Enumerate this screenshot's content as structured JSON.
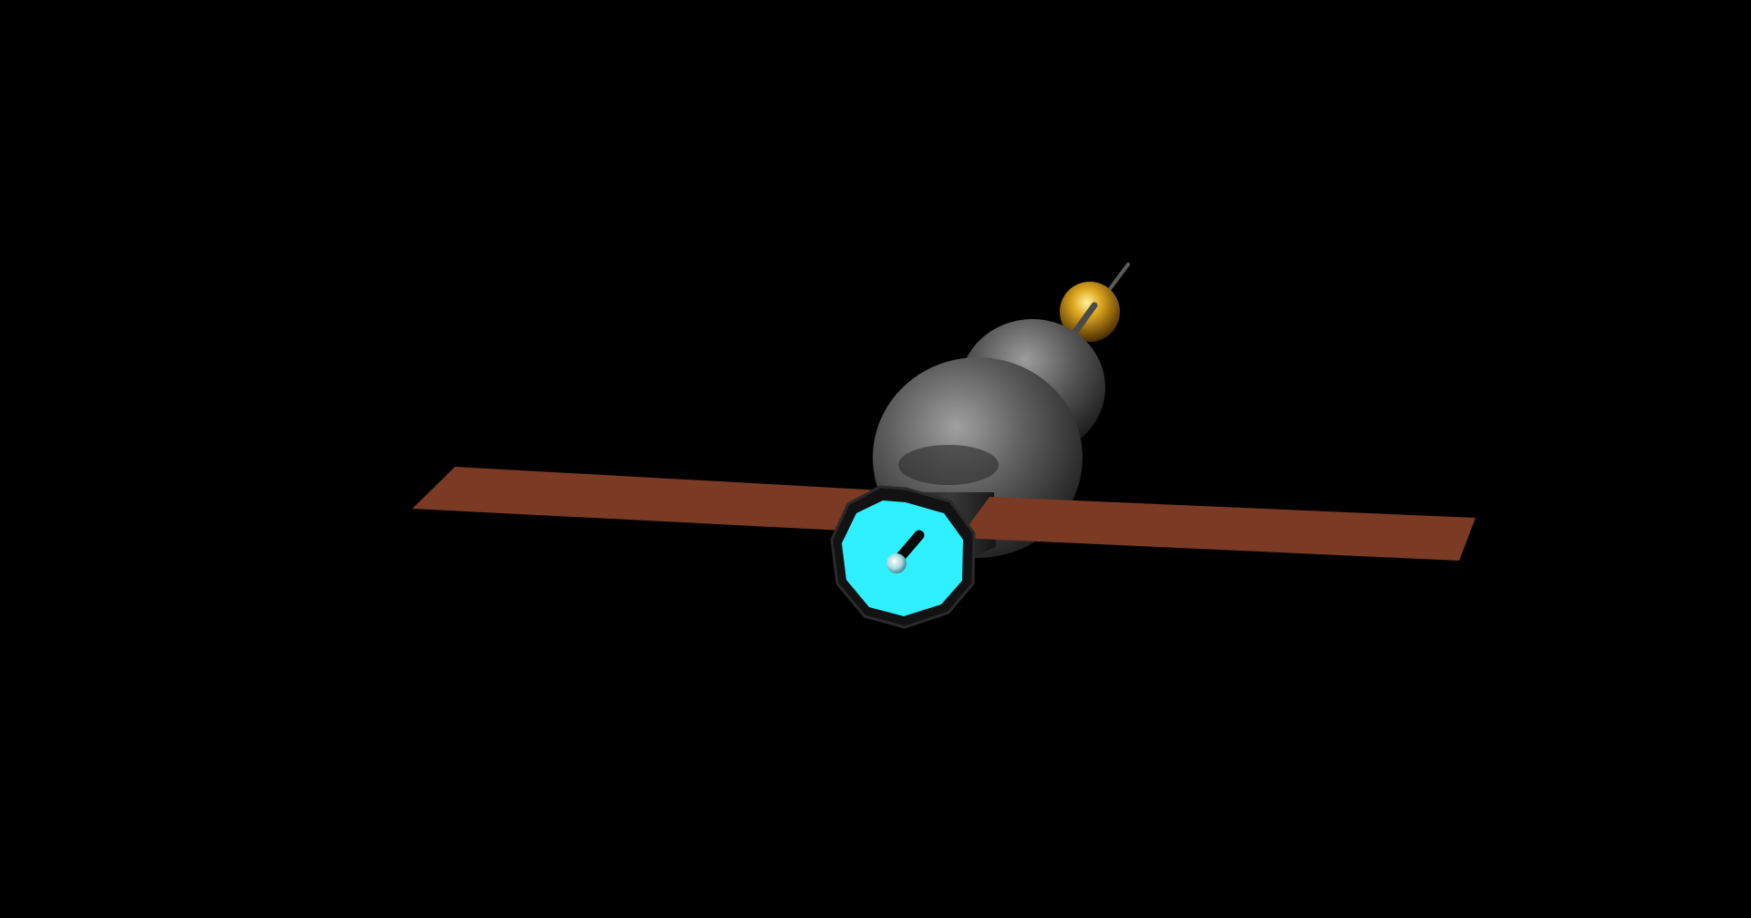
{
  "scene": {
    "subject": "satellite-model",
    "colors": {
      "background": "#000000",
      "solar_panel": "#7a3a24",
      "body": "#5c5c5c",
      "body_highlight": "#9a9a9a",
      "dish": "#2ff0ff",
      "dish_rim": "#1a1a1a",
      "sphere": "#d9a020",
      "antenna": "#555555"
    }
  }
}
